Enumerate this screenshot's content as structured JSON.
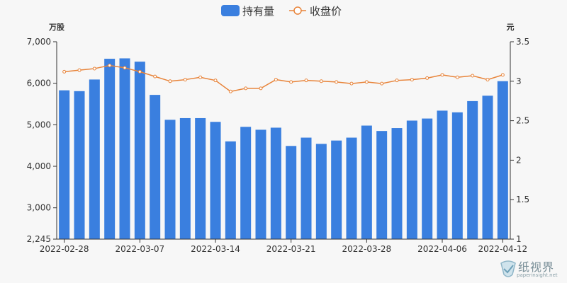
{
  "chart_data": {
    "type": "bar+line",
    "legend": [
      {
        "name": "持有量",
        "kind": "bar",
        "color": "#3a7fdf"
      },
      {
        "name": "收盘价",
        "kind": "line",
        "color": "#e8843a"
      }
    ],
    "legend_position": "top-center",
    "y_left_unit": "万股",
    "y_right_unit": "元",
    "y_left_range": [
      2245,
      7000
    ],
    "y_left_ticks": [
      "2,245",
      "3,000",
      "4,000",
      "5,000",
      "6,000",
      "7,000"
    ],
    "y_left_tick_values": [
      2245,
      3000,
      4000,
      5000,
      6000,
      7000
    ],
    "y_right_range": [
      1,
      3.5
    ],
    "y_right_ticks": [
      "1",
      "1.5",
      "2",
      "2.5",
      "3",
      "3.5"
    ],
    "y_right_tick_values": [
      1,
      1.5,
      2,
      2.5,
      3,
      3.5
    ],
    "x_tick_labels": [
      "2022-02-28",
      "2022-03-07",
      "2022-03-14",
      "2022-03-21",
      "2022-03-28",
      "2022-04-06",
      "2022-04-12"
    ],
    "x_tick_indices": [
      0,
      5,
      10,
      15,
      20,
      25,
      29
    ],
    "holdings": [
      5830,
      5810,
      6090,
      6590,
      6600,
      6520,
      5720,
      5120,
      5160,
      5160,
      5070,
      4600,
      4950,
      4880,
      4930,
      4490,
      4690,
      4540,
      4620,
      4690,
      4980,
      4850,
      4920,
      5100,
      5150,
      5340,
      5300,
      5570,
      5700,
      6050
    ],
    "close_price": [
      3.12,
      3.14,
      3.16,
      3.2,
      3.17,
      3.12,
      3.06,
      3.0,
      3.02,
      3.05,
      3.01,
      2.87,
      2.91,
      2.91,
      3.02,
      2.99,
      3.01,
      3.0,
      2.99,
      2.97,
      2.99,
      2.97,
      3.01,
      3.02,
      3.04,
      3.08,
      3.05,
      3.07,
      3.02,
      3.08
    ],
    "colors": {
      "bar": "#3a7fdf",
      "line": "#e8843a",
      "axis": "#333333",
      "text": "#333333"
    }
  },
  "watermark": {
    "name": "纸视界",
    "site": "paperinsight.net"
  }
}
